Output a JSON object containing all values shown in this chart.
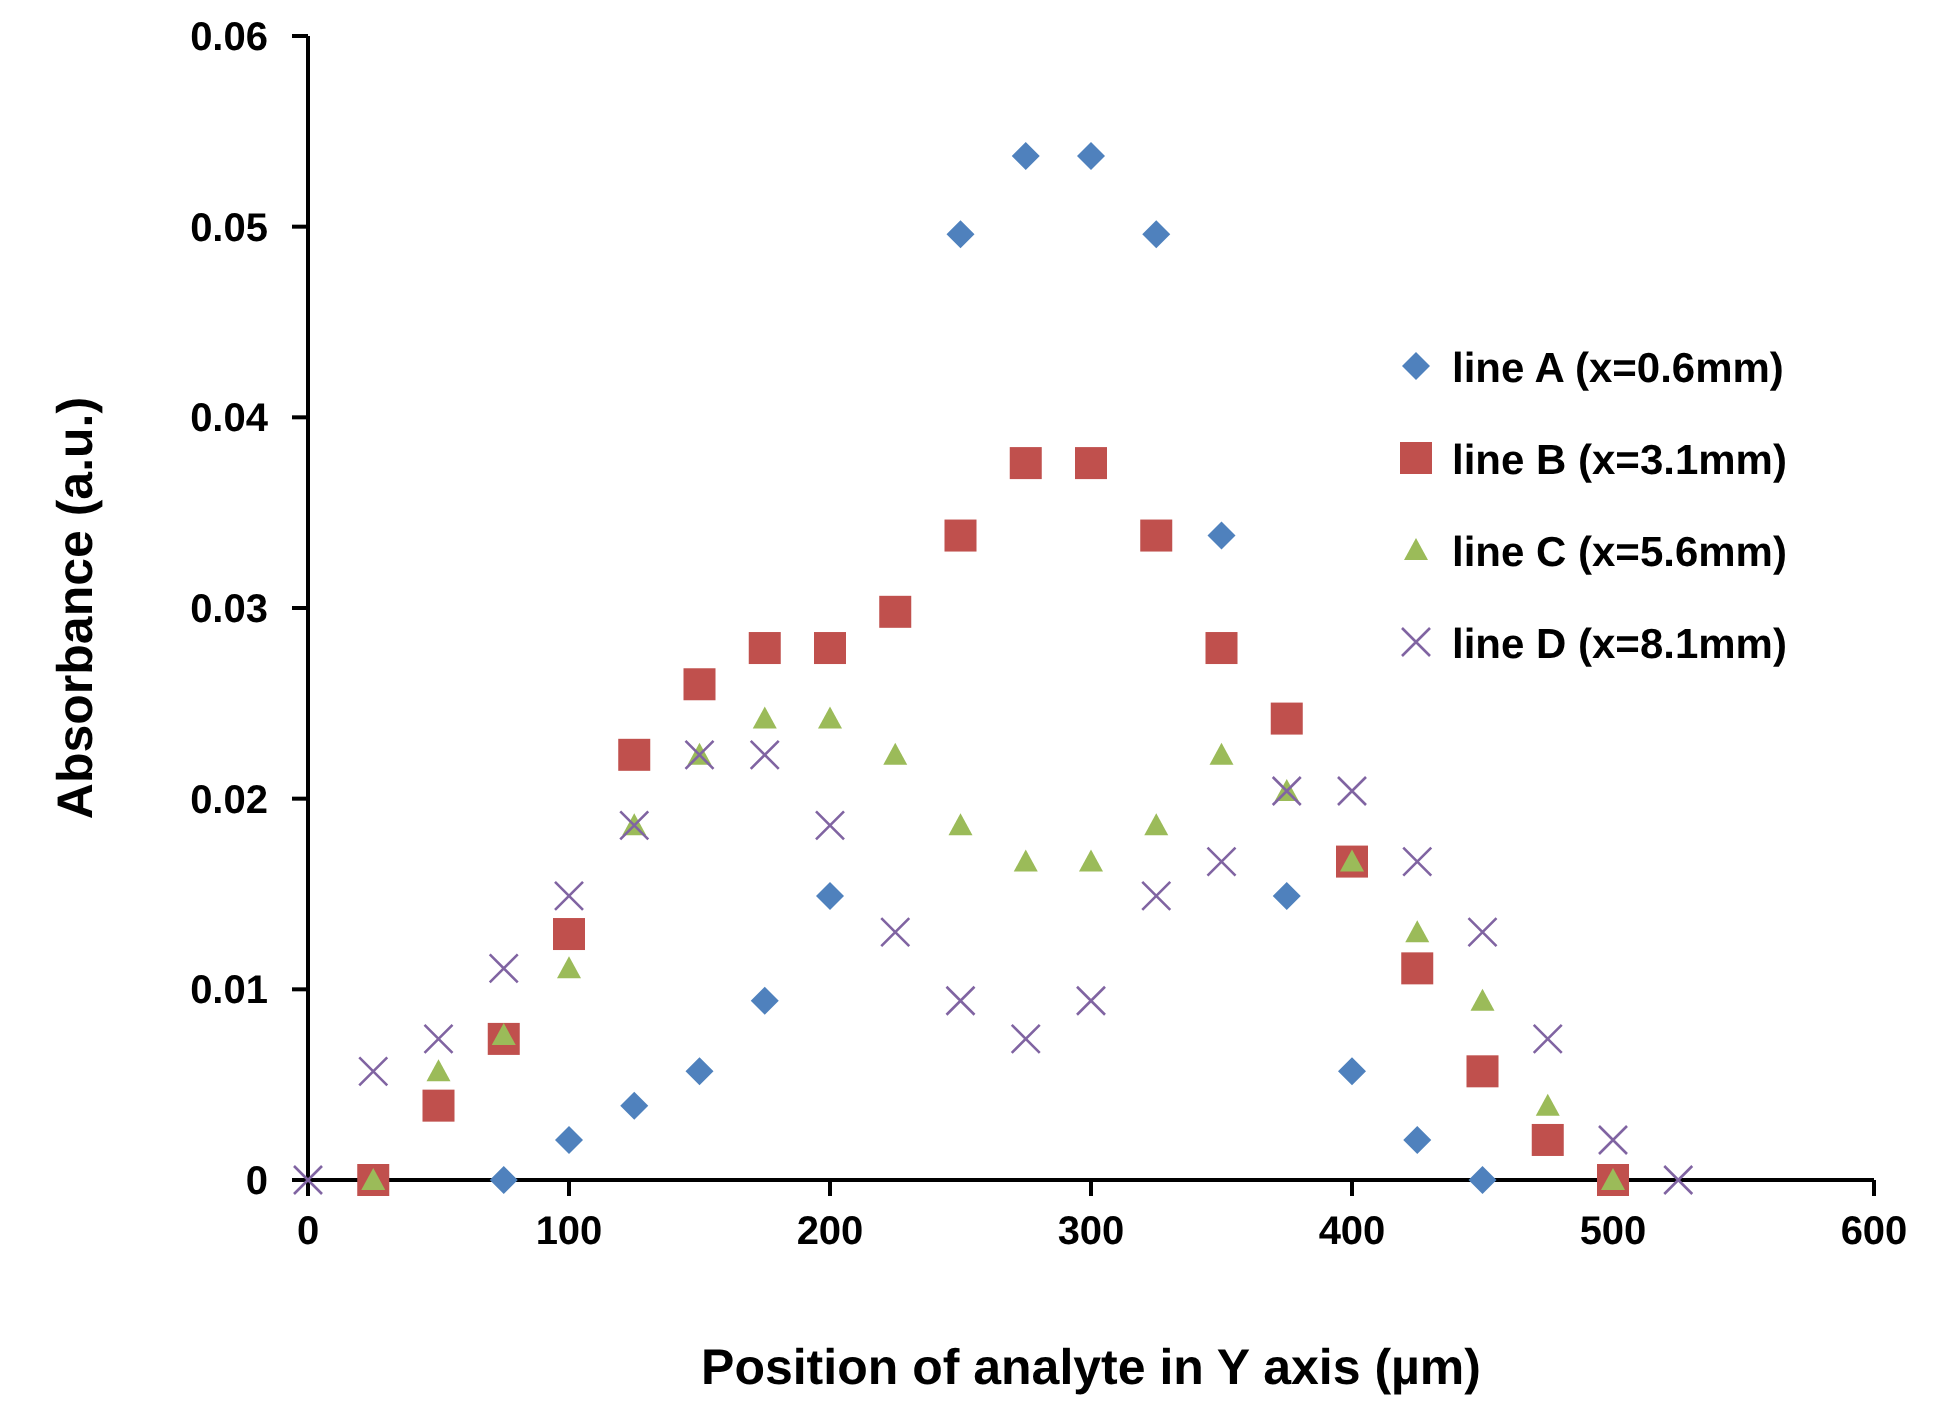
{
  "chart_data": {
    "type": "scatter",
    "xlabel": "Position of analyte in Y axis (µm)",
    "ylabel": "Absorbance (a.u.)",
    "xlim": [
      0,
      600
    ],
    "xticks": [
      0,
      100,
      200,
      300,
      400,
      500,
      600
    ],
    "ylim": [
      0,
      0.06
    ],
    "yticks": [
      0,
      0.01,
      0.02,
      0.03,
      0.04,
      0.05,
      0.06
    ],
    "grid": false,
    "legend": "right",
    "series": [
      {
        "name": "line A (x=0.6mm)",
        "color": "#4f81bd",
        "marker": "diamond",
        "x": [
          75,
          100,
          125,
          150,
          175,
          200,
          250,
          275,
          300,
          325,
          350,
          375,
          400,
          425,
          450
        ],
        "values": [
          0,
          0.0021,
          0.0039,
          0.0057,
          0.0094,
          0.0149,
          0.0496,
          0.0537,
          0.0537,
          0.0496,
          0.0338,
          0.0149,
          0.0057,
          0.0021,
          0
        ]
      },
      {
        "name": "line B (x=3.1mm)",
        "color": "#c0504d",
        "marker": "square",
        "x": [
          25,
          50,
          75,
          100,
          125,
          150,
          175,
          200,
          225,
          250,
          275,
          300,
          325,
          350,
          375,
          400,
          425,
          450,
          475,
          500
        ],
        "values": [
          0,
          0.0039,
          0.0074,
          0.0129,
          0.0223,
          0.026,
          0.0279,
          0.0279,
          0.0298,
          0.0338,
          0.0376,
          0.0376,
          0.0338,
          0.0279,
          0.0242,
          0.0167,
          0.0111,
          0.0057,
          0.0021,
          0
        ]
      },
      {
        "name": "line C (x=5.6mm)",
        "color": "#9bbb59",
        "marker": "triangle",
        "x": [
          25,
          50,
          75,
          100,
          125,
          150,
          175,
          200,
          225,
          250,
          275,
          300,
          325,
          350,
          375,
          400,
          425,
          450,
          475,
          500
        ],
        "values": [
          0,
          0.0057,
          0.0076,
          0.0111,
          0.0186,
          0.0223,
          0.0242,
          0.0242,
          0.0223,
          0.0186,
          0.0167,
          0.0167,
          0.0186,
          0.0223,
          0.0204,
          0.0167,
          0.013,
          0.0094,
          0.0039,
          0
        ]
      },
      {
        "name": "line D (x=8.1mm)",
        "color": "#8064a2",
        "marker": "cross",
        "x": [
          0,
          25,
          50,
          75,
          100,
          125,
          150,
          175,
          200,
          225,
          250,
          275,
          300,
          325,
          350,
          375,
          400,
          425,
          450,
          475,
          500,
          525
        ],
        "values": [
          0,
          0.0057,
          0.0074,
          0.0111,
          0.0149,
          0.0186,
          0.0223,
          0.0223,
          0.0186,
          0.013,
          0.0094,
          0.0074,
          0.0094,
          0.0149,
          0.0167,
          0.0204,
          0.0204,
          0.0167,
          0.013,
          0.0074,
          0.0021,
          0
        ]
      }
    ]
  }
}
